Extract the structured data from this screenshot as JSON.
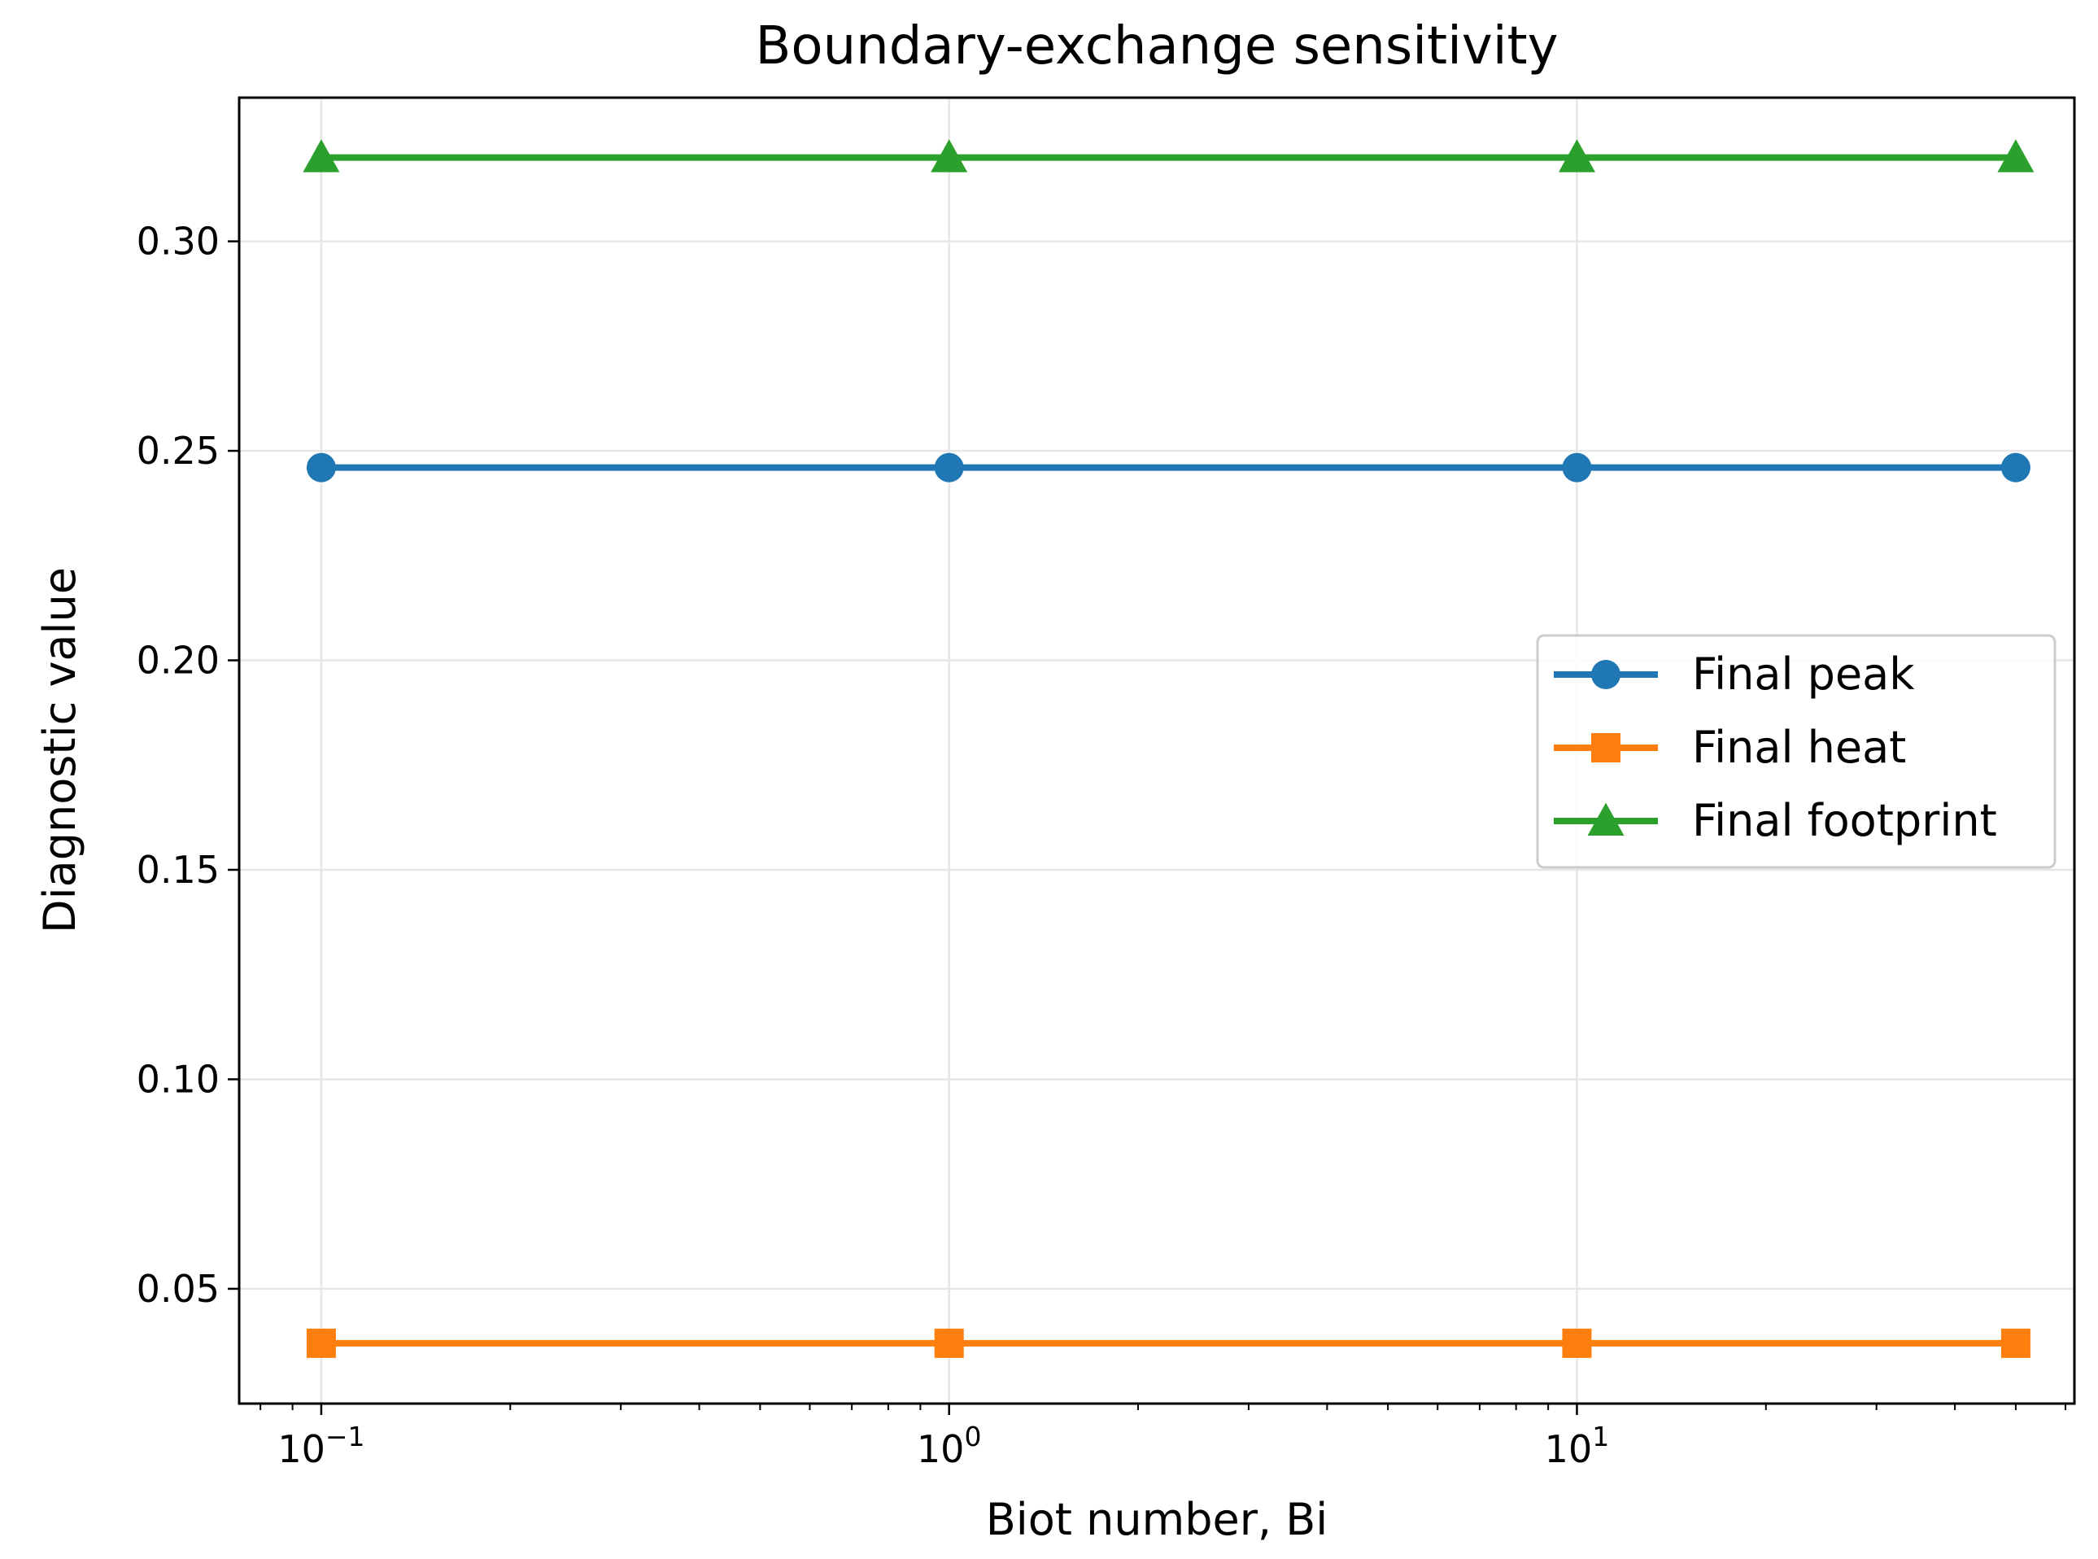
{
  "chart_data": {
    "type": "line",
    "title": "Boundary-exchange sensitivity",
    "xlabel": "Biot number, Bi",
    "ylabel": "Diagnostic value",
    "x_scale": "log",
    "x": [
      0.1,
      1,
      10,
      50
    ],
    "xlim": [
      0.074,
      62
    ],
    "ylim": [
      0.0226,
      0.3343
    ],
    "x_ticks": [
      {
        "value": 0.1,
        "base": "10",
        "exp": "−1"
      },
      {
        "value": 1,
        "base": "10",
        "exp": "0"
      },
      {
        "value": 10,
        "base": "10",
        "exp": "1"
      }
    ],
    "y_ticks": [
      "0.05",
      "0.10",
      "0.15",
      "0.20",
      "0.25",
      "0.30"
    ],
    "grid": true,
    "legend_position": "center-right",
    "series": [
      {
        "name": "Final peak",
        "values": [
          0.246,
          0.246,
          0.246,
          0.246
        ],
        "color": "#1f77b4",
        "marker": "circle"
      },
      {
        "name": "Final heat",
        "values": [
          0.037,
          0.037,
          0.037,
          0.037
        ],
        "color": "#ff7f0e",
        "marker": "square"
      },
      {
        "name": "Final footprint",
        "values": [
          0.32,
          0.32,
          0.32,
          0.32
        ],
        "color": "#2ca02c",
        "marker": "triangle"
      }
    ]
  }
}
